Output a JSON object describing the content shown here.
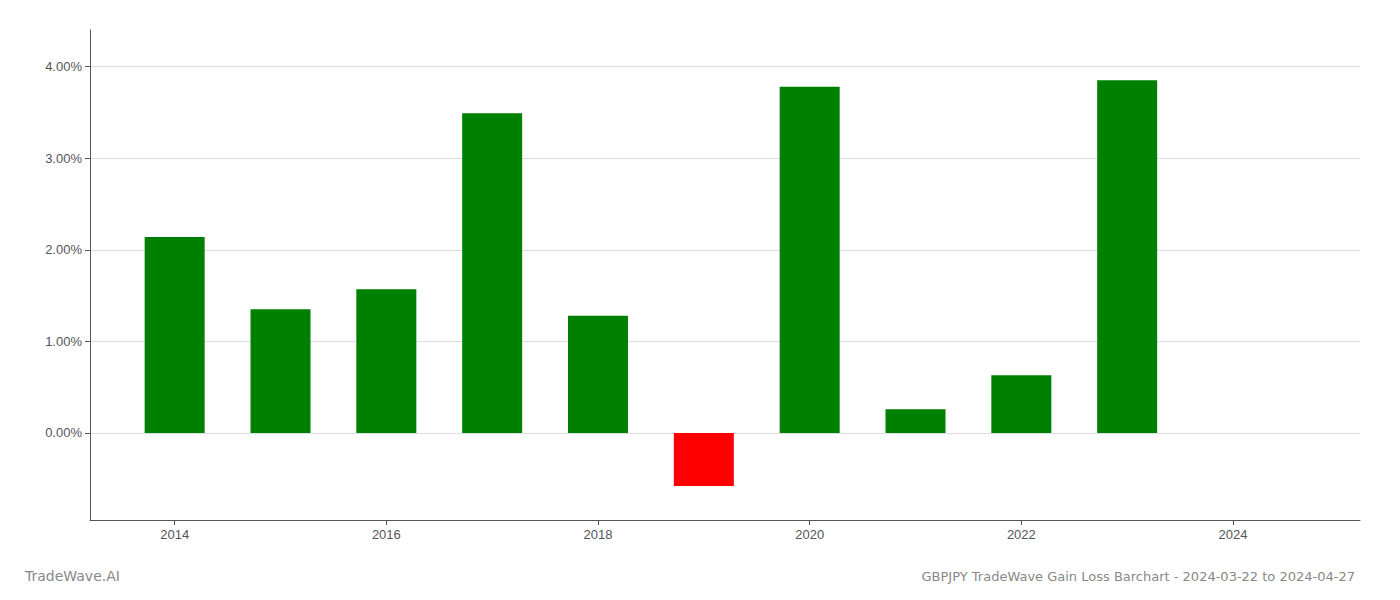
{
  "chart_data": {
    "type": "bar",
    "title": "GBPJPY TradeWave Gain Loss Barchart - 2024-03-22 to 2024-04-27",
    "annotations": [
      "TradeWave.AI"
    ],
    "x": [
      2014,
      2015,
      2016,
      2017,
      2018,
      2019,
      2020,
      2021,
      2022,
      2023
    ],
    "values": [
      0.0214,
      0.0135,
      0.0157,
      0.0349,
      0.0128,
      -0.0058,
      0.0378,
      0.0026,
      0.0063,
      0.0385
    ],
    "colors": [
      "#008000",
      "#008000",
      "#008000",
      "#008000",
      "#008000",
      "#ff0000",
      "#008000",
      "#008000",
      "#008000",
      "#008000"
    ],
    "xlim": [
      2013.2,
      2025.2
    ],
    "xticks": [
      2014,
      2016,
      2018,
      2020,
      2022,
      2024
    ],
    "ylim": [
      -0.0095,
      0.044
    ],
    "yticks": [
      {
        "value": 0.0,
        "label": "0.00%"
      },
      {
        "value": 0.01,
        "label": "1.00%"
      },
      {
        "value": 0.02,
        "label": "2.00%"
      },
      {
        "value": 0.03,
        "label": "3.00%"
      },
      {
        "value": 0.04,
        "label": "4.00%"
      }
    ],
    "grid": true
  }
}
